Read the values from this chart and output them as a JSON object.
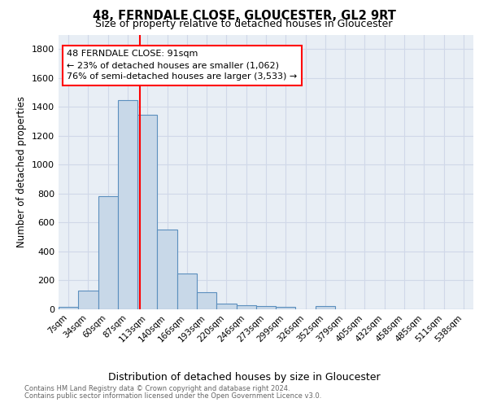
{
  "title1": "48, FERNDALE CLOSE, GLOUCESTER, GL2 9RT",
  "title2": "Size of property relative to detached houses in Gloucester",
  "xlabel": "Distribution of detached houses by size in Gloucester",
  "ylabel": "Number of detached properties",
  "bar_categories": [
    "7sqm",
    "34sqm",
    "60sqm",
    "87sqm",
    "113sqm",
    "140sqm",
    "166sqm",
    "193sqm",
    "220sqm",
    "246sqm",
    "273sqm",
    "299sqm",
    "326sqm",
    "352sqm",
    "379sqm",
    "405sqm",
    "432sqm",
    "458sqm",
    "485sqm",
    "511sqm",
    "538sqm"
  ],
  "bar_values": [
    15,
    130,
    780,
    1445,
    1345,
    550,
    245,
    118,
    40,
    30,
    20,
    15,
    0,
    20,
    0,
    0,
    0,
    0,
    0,
    0,
    0
  ],
  "bar_color": "#c8d8e8",
  "bar_edge_color": "#5b8fbe",
  "grid_color": "#d0d8e8",
  "bg_color": "#e8eef5",
  "vline_x": 3.62,
  "vline_color": "red",
  "annotation_line1": "48 FERNDALE CLOSE: 91sqm",
  "annotation_line2": "← 23% of detached houses are smaller (1,062)",
  "annotation_line3": "76% of semi-detached houses are larger (3,533) →",
  "annotation_box_color": "red",
  "footnote1": "Contains HM Land Registry data © Crown copyright and database right 2024.",
  "footnote2": "Contains public sector information licensed under the Open Government Licence v3.0.",
  "ylim": [
    0,
    1900
  ],
  "yticks": [
    0,
    200,
    400,
    600,
    800,
    1000,
    1200,
    1400,
    1600,
    1800
  ]
}
